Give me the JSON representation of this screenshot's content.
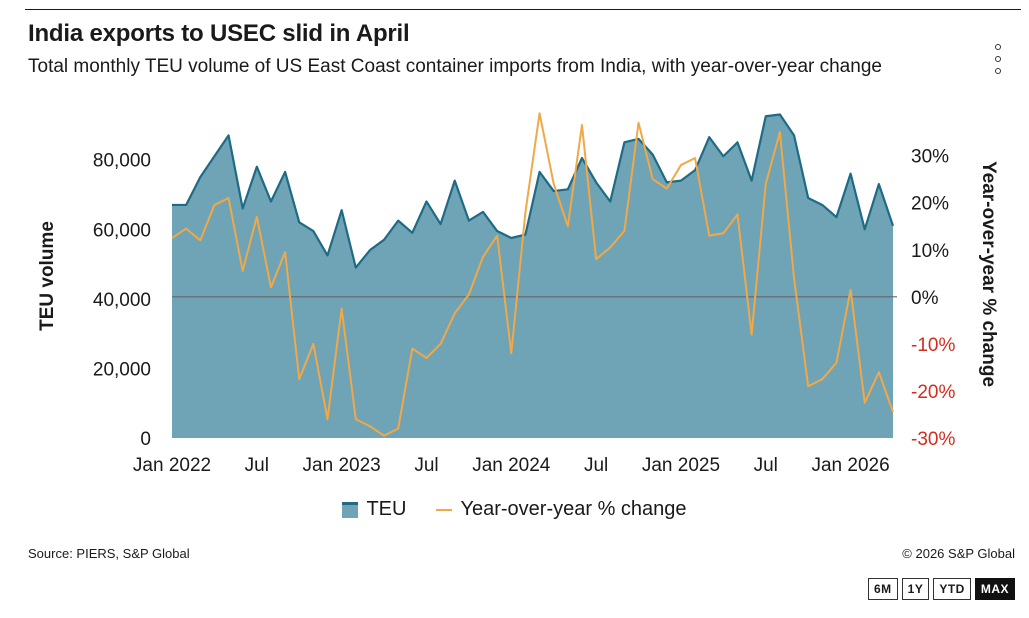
{
  "title": "India exports to USEC slid in April",
  "subtitle": "Total monthly TEU volume of US East Coast container imports from India, with year-over-year change",
  "source": "Source: PIERS, S&P Global",
  "copyright": "© 2026 S&P Global",
  "range_buttons": [
    "6M",
    "1Y",
    "YTD",
    "MAX"
  ],
  "active_range": "MAX",
  "colors": {
    "area_fill": "#6fa3b6",
    "area_stroke": "#1f6b85",
    "yoy_line": "#f0a848",
    "negative_tick": "#d62a1e",
    "zero_line": "#666666"
  },
  "chart_data": {
    "type": "area",
    "x_tick_labels": [
      "Jan 2022",
      "Jul",
      "Jan 2023",
      "Jul",
      "Jan 2024",
      "Jul",
      "Jan 2025",
      "Jul",
      "Jan 2026"
    ],
    "x_start": "2022-01",
    "x_end": "2026-04",
    "ylabel": "TEU volume",
    "y2label": "Year-over-year % change",
    "ylim": [
      0,
      92000
    ],
    "y_ticks": [
      "0",
      "20,000",
      "40,000",
      "60,000",
      "80,000"
    ],
    "y2lim": [
      -30,
      38
    ],
    "y2_ticks": [
      "30%",
      "20%",
      "10%",
      "0%",
      "-10%",
      "-20%",
      "-30%"
    ],
    "legend": [
      "TEU",
      "Year-over-year % change"
    ],
    "series": [
      {
        "name": "TEU",
        "values": [
          67000,
          67000,
          75000,
          81000,
          87000,
          66000,
          78000,
          68000,
          76500,
          62000,
          59500,
          52500,
          65500,
          49000,
          54000,
          57000,
          62500,
          59000,
          68000,
          61500,
          74000,
          62500,
          65000,
          59500,
          57500,
          58500,
          76500,
          71000,
          71500,
          80500,
          73500,
          68000,
          85000,
          86000,
          81500,
          73500,
          74000,
          77000,
          86500,
          81000,
          85000,
          74000,
          92500,
          93000,
          87000,
          69000,
          67000,
          63500,
          76000,
          60000,
          73000,
          61000
        ]
      },
      {
        "name": "Year-over-year % change",
        "values": [
          12.5,
          14.5,
          12,
          19.5,
          21,
          5.5,
          17,
          2,
          9.5,
          -17.5,
          -10,
          -26,
          -2.5,
          -26,
          -27.5,
          -29.5,
          -28,
          -11,
          -13,
          -10,
          -3.5,
          0.5,
          8.5,
          13,
          -12,
          18,
          39,
          24,
          15,
          36.5,
          8,
          10.5,
          14,
          37,
          25,
          23,
          28,
          29.5,
          13,
          13.5,
          17.5,
          -8,
          24,
          35,
          4,
          -19,
          -17.5,
          -14,
          1.5,
          -22.5,
          -16,
          -24.5
        ]
      }
    ]
  }
}
